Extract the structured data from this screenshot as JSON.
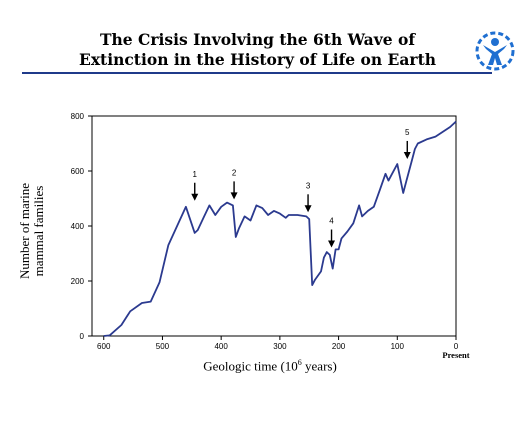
{
  "header": {
    "title_line1": "The Crisis Involving the 6th Wave of",
    "title_line2": "Extinction in the History of Life on Earth",
    "accent_color": "#1f3a8a",
    "logo_color": "#1f6fd1"
  },
  "chart_data": {
    "type": "line",
    "ylabel": "Number of marine mammal families",
    "xlabel_pre": "Geologic time (10",
    "xlabel_sup": "6",
    "xlabel_post": " years)",
    "present_label": "Present",
    "xlim": [
      620,
      0
    ],
    "ylim": [
      0,
      800
    ],
    "x_ticks": [
      600,
      500,
      400,
      300,
      200,
      100,
      0
    ],
    "y_ticks": [
      0,
      200,
      400,
      600,
      800
    ],
    "line_color": "#2b3a8f",
    "series": [
      {
        "x": [
          600,
          590,
          570,
          555,
          535,
          520,
          505,
          490,
          475,
          460,
          445,
          440,
          430,
          420,
          410,
          400,
          390,
          380,
          375,
          370,
          360,
          350,
          340,
          330,
          320,
          310,
          300,
          290,
          285,
          270,
          255,
          250,
          245,
          240,
          230,
          225,
          220,
          215,
          210,
          205,
          200,
          195,
          185,
          175,
          165,
          160,
          150,
          140,
          130,
          120,
          115,
          110,
          100,
          90,
          85,
          75,
          70,
          65,
          50,
          35,
          10,
          0
        ],
        "y": [
          0,
          2,
          40,
          90,
          120,
          125,
          195,
          330,
          400,
          470,
          375,
          385,
          430,
          475,
          440,
          470,
          485,
          475,
          360,
          390,
          435,
          420,
          475,
          465,
          440,
          455,
          445,
          430,
          440,
          440,
          435,
          425,
          185,
          205,
          235,
          285,
          305,
          295,
          245,
          315,
          315,
          355,
          380,
          410,
          475,
          435,
          455,
          470,
          530,
          590,
          565,
          585,
          625,
          520,
          560,
          640,
          680,
          700,
          715,
          725,
          760,
          780
        ]
      }
    ],
    "annotations": [
      {
        "label": "1",
        "x": 445,
        "y": 470
      },
      {
        "label": "2",
        "x": 378,
        "y": 475
      },
      {
        "label": "3",
        "x": 252,
        "y": 428
      },
      {
        "label": "4",
        "x": 212,
        "y": 300
      },
      {
        "label": "5",
        "x": 83,
        "y": 622
      }
    ]
  }
}
